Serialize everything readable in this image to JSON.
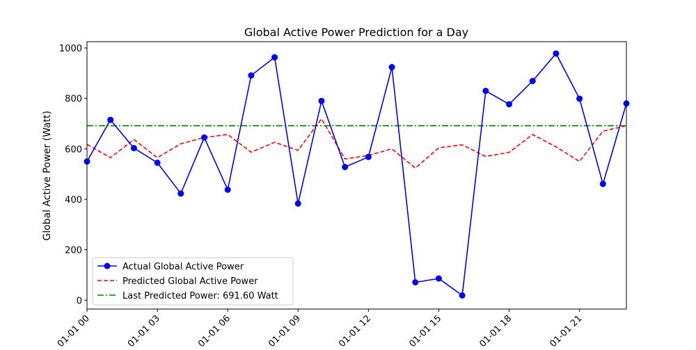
{
  "chart_data": {
    "type": "line",
    "title": "Global Active Power Prediction for a Day",
    "xlabel": "",
    "ylabel": "Global Active Power (Watt)",
    "x": [
      "2023-01-01 00:00",
      "2023-01-01 01:00",
      "2023-01-01 02:00",
      "2023-01-01 03:00",
      "2023-01-01 04:00",
      "2023-01-01 05:00",
      "2023-01-01 06:00",
      "2023-01-01 07:00",
      "2023-01-01 08:00",
      "2023-01-01 09:00",
      "2023-01-01 10:00",
      "2023-01-01 11:00",
      "2023-01-01 12:00",
      "2023-01-01 13:00",
      "2023-01-01 14:00",
      "2023-01-01 15:00",
      "2023-01-01 16:00",
      "2023-01-01 17:00",
      "2023-01-01 18:00",
      "2023-01-01 19:00",
      "2023-01-01 20:00",
      "2023-01-01 21:00",
      "2023-01-01 22:00",
      "2023-01-01 23:00"
    ],
    "xlim": [
      "2023-01-01 00:00",
      "2023-01-01 23:00"
    ],
    "ylim": [
      -35,
      1025
    ],
    "x_ticks": [
      "01-01 00",
      "01-01 03",
      "01-01 06",
      "01-01 09",
      "01-01 12",
      "01-01 15",
      "01-01 18",
      "01-01 21"
    ],
    "y_ticks": [
      0,
      200,
      400,
      600,
      800,
      1000
    ],
    "grid": false,
    "legend_position": "lower-left",
    "series": [
      {
        "name": "Actual Global Active Power",
        "style": "solid-with-markers",
        "color": "#0000ff",
        "values": [
          550,
          715,
          603,
          545,
          423,
          645,
          438,
          891,
          963,
          383,
          790,
          528,
          568,
          924,
          71,
          86,
          19,
          830,
          777,
          869,
          978,
          799,
          461,
          780
        ]
      },
      {
        "name": "Predicted Global Active Power",
        "style": "dashed",
        "color": "#ff0000",
        "values": [
          618,
          565,
          637,
          565,
          620,
          645,
          657,
          587,
          626,
          594,
          719,
          560,
          574,
          600,
          524,
          604,
          616,
          570,
          586,
          657,
          608,
          550,
          670,
          692
        ]
      },
      {
        "name": "Last Predicted Power: 691.60 Watt",
        "style": "dashdot-horizontal",
        "color": "#008000",
        "value": 691.6
      }
    ]
  }
}
